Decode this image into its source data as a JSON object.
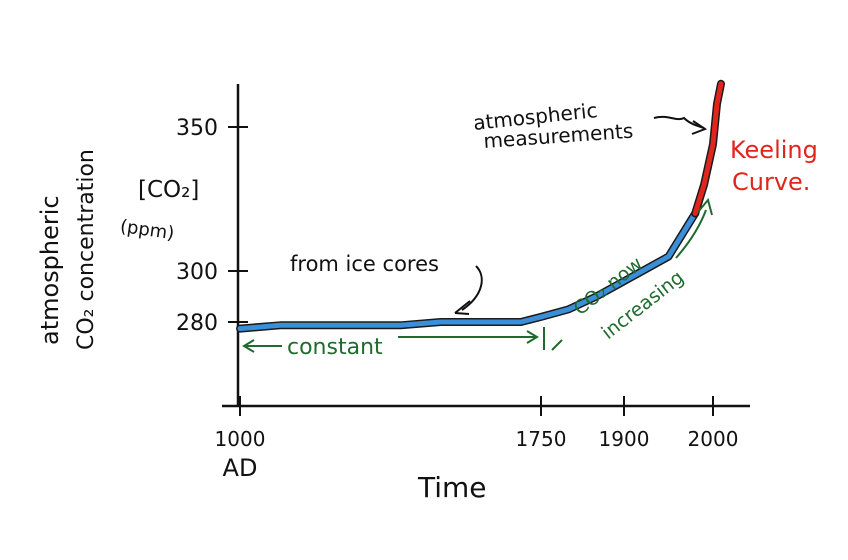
{
  "colors": {
    "ink": "#111111",
    "ice_core_line": "#3a8fd8",
    "keeling_line": "#e0261c",
    "annotation_green": "#1f6b2e",
    "keeling_text": "#e0261c"
  },
  "y_axis_label": {
    "line1": "atmospheric",
    "line2": "CO₂ concentration",
    "bracket": "[CO₂]",
    "unit": "(ppm)"
  },
  "x_axis_label": "Time",
  "x_ticks": [
    {
      "value": 1000,
      "label": "1000",
      "sublabel": "AD"
    },
    {
      "value": 1750,
      "label": "1750"
    },
    {
      "value": 1900,
      "label": "1900"
    },
    {
      "value": 2000,
      "label": "2000"
    }
  ],
  "y_ticks": [
    {
      "value": 280,
      "label": "280"
    },
    {
      "value": 300,
      "label": "300"
    },
    {
      "value": 350,
      "label": "350"
    }
  ],
  "annotations": {
    "ice_cores": "from ice cores",
    "constant": "constant",
    "increasing_line1": "CO₂ now",
    "increasing_line2": "increasing",
    "atmos_line1": "atmospheric",
    "atmos_line2": "measurements",
    "keeling_line1": "Keeling",
    "keeling_line2": "Curve."
  },
  "chart_data": {
    "type": "line",
    "title": "",
    "xlabel": "Time",
    "ylabel": "atmospheric CO₂ concentration [CO₂] (ppm)",
    "xlim": [
      1000,
      2060
    ],
    "ylim": [
      255,
      367
    ],
    "series": [
      {
        "name": "from ice cores",
        "color": "#3a8fd8",
        "points": [
          [
            1000,
            278
          ],
          [
            1100,
            279
          ],
          [
            1200,
            279
          ],
          [
            1300,
            279
          ],
          [
            1400,
            279
          ],
          [
            1500,
            280
          ],
          [
            1600,
            280
          ],
          [
            1700,
            280
          ],
          [
            1750,
            282
          ],
          [
            1800,
            285
          ],
          [
            1850,
            290
          ],
          [
            1900,
            296
          ],
          [
            1950,
            305
          ],
          [
            1980,
            320
          ]
        ]
      },
      {
        "name": "Keeling Curve.",
        "color": "#e0261c",
        "points": [
          [
            1980,
            320
          ],
          [
            1990,
            330
          ],
          [
            2000,
            344
          ],
          [
            2010,
            358
          ],
          [
            2020,
            365
          ]
        ]
      }
    ],
    "grid": false,
    "legend": "none"
  }
}
